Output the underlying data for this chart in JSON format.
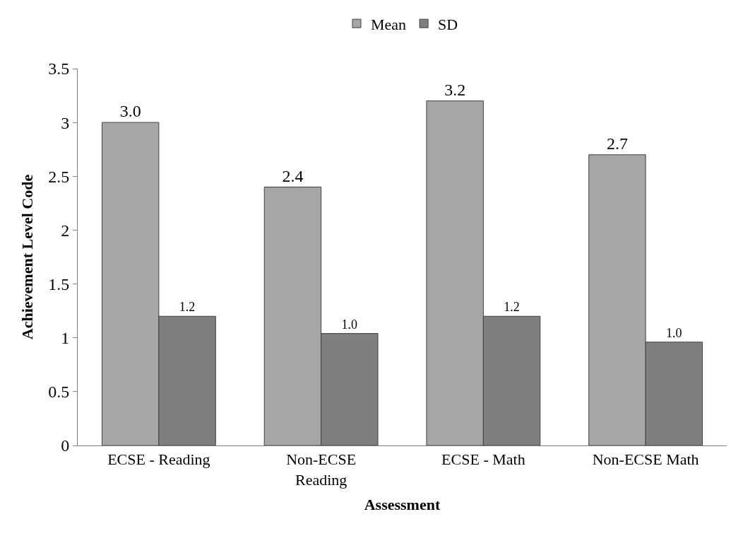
{
  "chart_data": {
    "type": "bar",
    "xlabel": "Assessment",
    "ylabel": "Achievement Level Code",
    "categories": [
      "ECSE - Reading",
      "Non-ECSE Reading",
      "ECSE - Math",
      "Non-ECSE Math"
    ],
    "series": [
      {
        "name": "Mean",
        "color": "#a6a6a6",
        "values": [
          3.0,
          2.4,
          3.2,
          2.7
        ],
        "value_labels": [
          "3.0",
          "2.4",
          "3.2",
          "2.7"
        ]
      },
      {
        "name": "SD",
        "color": "#7f7f7f",
        "values": [
          1.2,
          1.04,
          1.2,
          0.96
        ],
        "value_labels": [
          "1.2",
          "1.0",
          "1.2",
          "1.0"
        ]
      }
    ],
    "ylim": [
      0,
      3.5
    ],
    "yticks": [
      0,
      0.5,
      1,
      1.5,
      2,
      2.5,
      3,
      3.5
    ],
    "grid": false,
    "legend": "top"
  }
}
